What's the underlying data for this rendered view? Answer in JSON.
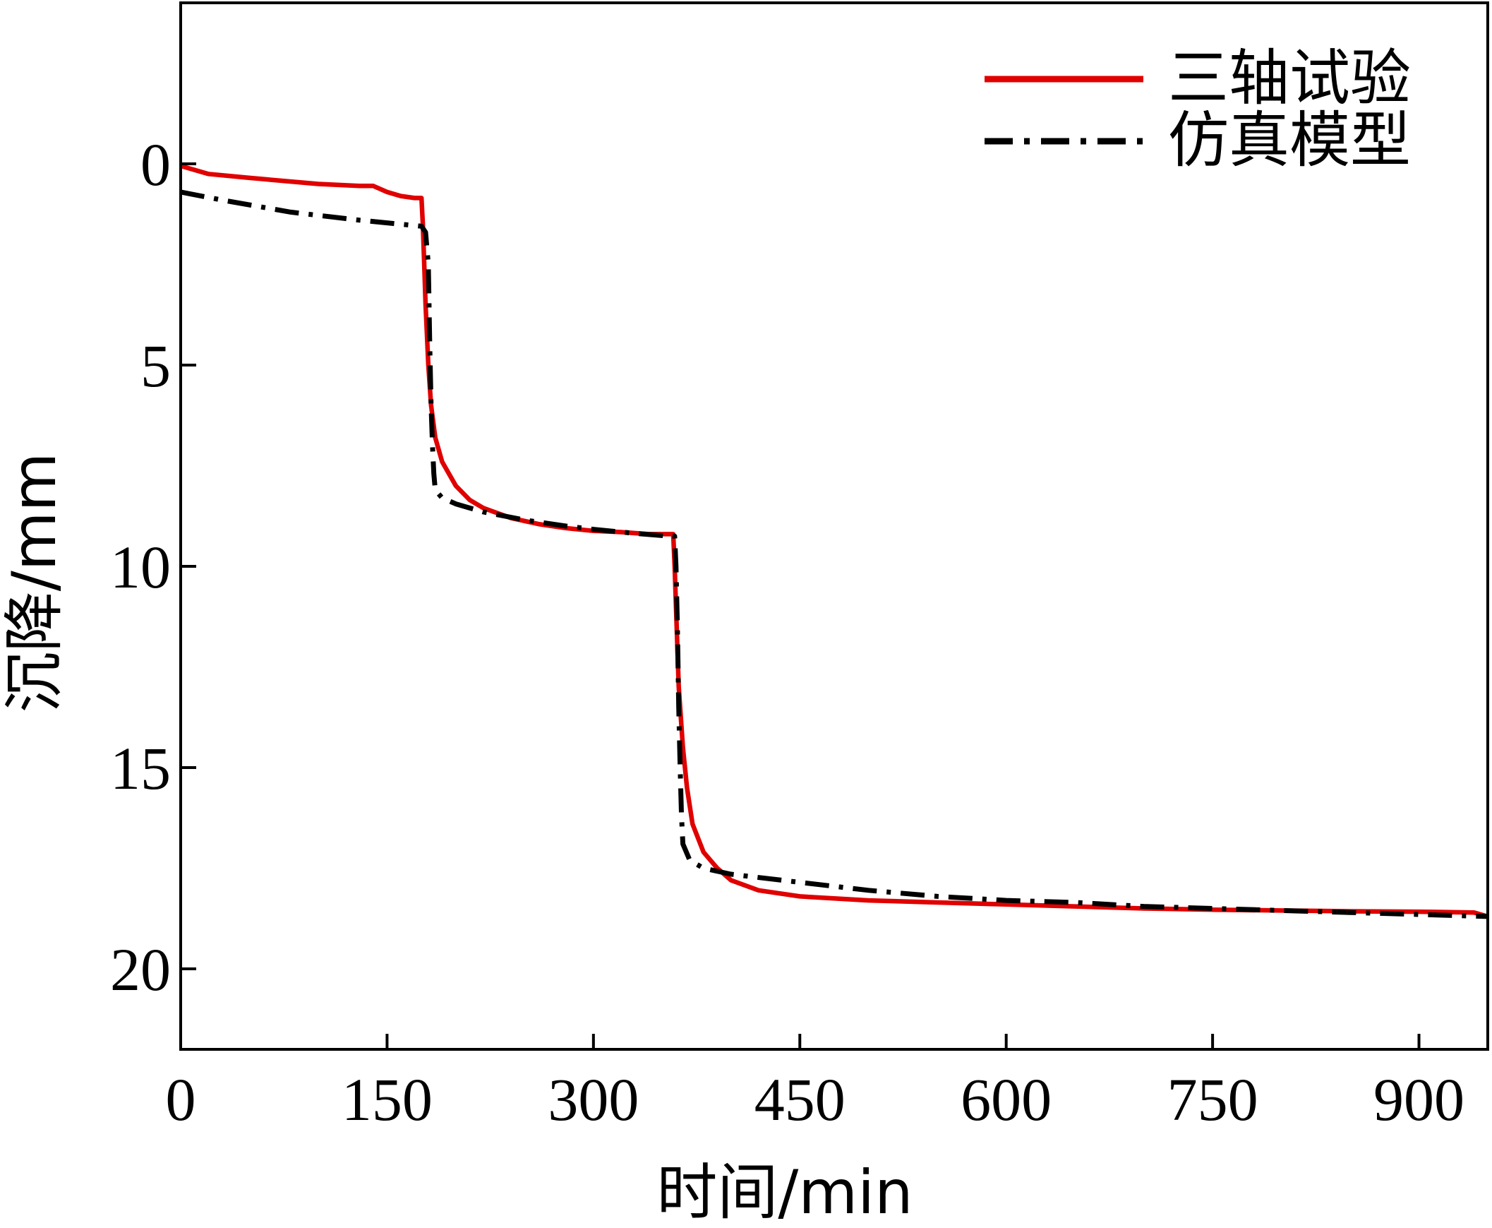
{
  "chart_data": {
    "type": "line",
    "title": "",
    "xlabel": "时间/min",
    "ylabel": "沉降/mm",
    "xlim": [
      0,
      950
    ],
    "ylim": [
      -4,
      22
    ],
    "y_inverted": true,
    "xticks": [
      0,
      150,
      300,
      450,
      600,
      750,
      900
    ],
    "yticks": [
      0,
      5,
      10,
      15,
      20
    ],
    "grid": false,
    "legend_position": "top-right",
    "series": [
      {
        "name": "三轴试验",
        "color": "#e00000",
        "style": "solid",
        "x": [
          0,
          5,
          20,
          50,
          100,
          130,
          140,
          150,
          160,
          170,
          175,
          176,
          177,
          178,
          180,
          182,
          185,
          190,
          200,
          210,
          220,
          240,
          260,
          280,
          300,
          320,
          340,
          352,
          358,
          359,
          360,
          362,
          365,
          368,
          372,
          380,
          390,
          400,
          420,
          450,
          500,
          550,
          600,
          650,
          700,
          750,
          800,
          850,
          900,
          940,
          950
        ],
        "y": [
          0.05,
          0.1,
          0.25,
          0.35,
          0.5,
          0.55,
          0.55,
          0.7,
          0.8,
          0.85,
          0.85,
          1.5,
          2.5,
          3.5,
          5.0,
          6.0,
          6.8,
          7.4,
          8.0,
          8.35,
          8.55,
          8.8,
          8.95,
          9.05,
          9.12,
          9.15,
          9.2,
          9.2,
          9.2,
          10.0,
          11.0,
          13.0,
          14.5,
          15.5,
          16.4,
          17.1,
          17.5,
          17.8,
          18.05,
          18.2,
          18.3,
          18.35,
          18.4,
          18.45,
          18.5,
          18.53,
          18.55,
          18.57,
          18.58,
          18.6,
          18.7
        ]
      },
      {
        "name": "仿真模型",
        "color": "#000000",
        "style": "dashdot",
        "x": [
          0,
          30,
          80,
          130,
          160,
          175,
          178,
          180,
          181,
          182,
          183,
          184,
          185,
          190,
          200,
          220,
          250,
          280,
          300,
          330,
          355,
          359,
          360,
          361,
          362,
          363,
          364,
          365,
          370,
          380,
          400,
          450,
          500,
          550,
          600,
          650,
          700,
          750,
          800,
          850,
          900,
          950
        ],
        "y": [
          0.7,
          0.9,
          1.2,
          1.4,
          1.5,
          1.55,
          1.7,
          2.5,
          4.5,
          6.0,
          7.0,
          7.7,
          8.1,
          8.3,
          8.45,
          8.65,
          8.85,
          9.0,
          9.08,
          9.18,
          9.25,
          9.25,
          10.0,
          11.5,
          13.5,
          15.0,
          16.2,
          16.9,
          17.3,
          17.5,
          17.65,
          17.85,
          18.05,
          18.2,
          18.3,
          18.35,
          18.45,
          18.5,
          18.55,
          18.6,
          18.65,
          18.7
        ]
      }
    ]
  }
}
